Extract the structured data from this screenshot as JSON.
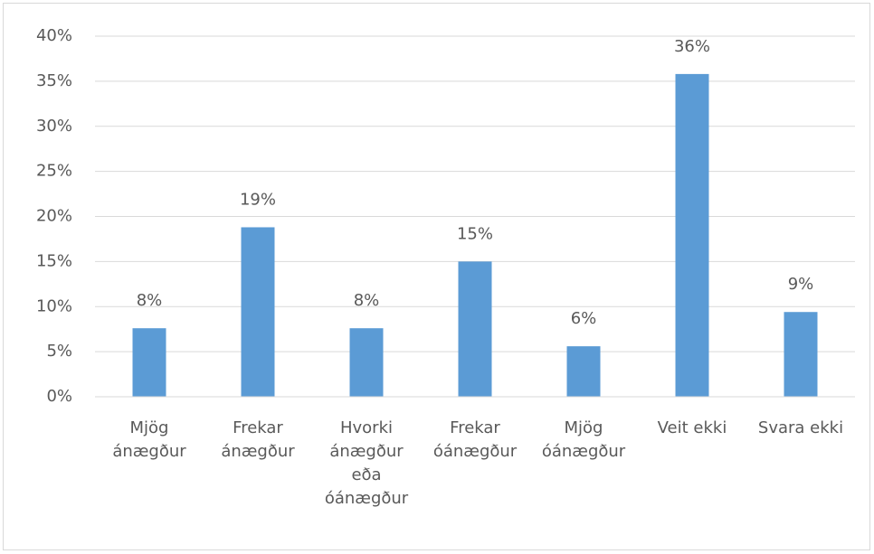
{
  "chart_data": {
    "type": "bar",
    "categories": [
      "Mjög ánægður",
      "Frekar ánægður",
      "Hvorki ánægður eða óánægður",
      "Frekar óánægður",
      "Mjög óánægður",
      "Veit ekki",
      "Svara ekki"
    ],
    "values": [
      7.6,
      18.8,
      7.6,
      15.0,
      5.6,
      35.8,
      9.4
    ],
    "value_labels": [
      "8%",
      "19%",
      "8%",
      "15%",
      "6%",
      "36%",
      "9%"
    ],
    "color": "#5b9bd5",
    "ylim": [
      0,
      40
    ],
    "yticks": [
      {
        "value": 0,
        "label": "0%"
      },
      {
        "value": 5,
        "label": "5%"
      },
      {
        "value": 10,
        "label": "10%"
      },
      {
        "value": 15,
        "label": "15%"
      },
      {
        "value": 20,
        "label": "20%"
      },
      {
        "value": 25,
        "label": "25%"
      },
      {
        "value": 30,
        "label": "30%"
      },
      {
        "value": 35,
        "label": "35%"
      },
      {
        "value": 40,
        "label": "40%"
      }
    ],
    "grid": true
  }
}
